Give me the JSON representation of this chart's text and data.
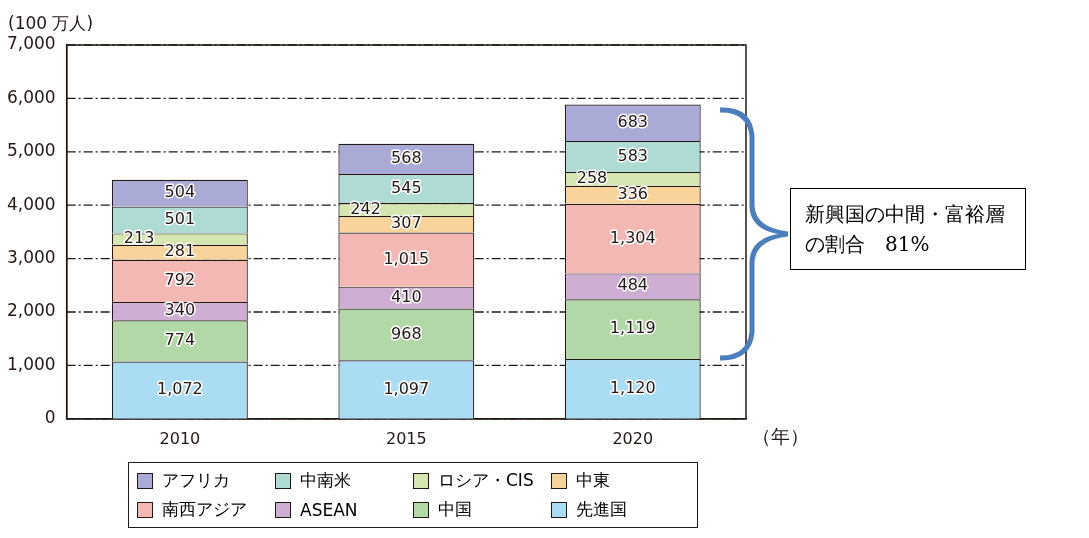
{
  "chart_data": {
    "type": "bar",
    "stacked": true,
    "ylabel": "(100 万人)",
    "xlabel": "（年）",
    "categories": [
      "2010",
      "2015",
      "2020"
    ],
    "series": [
      {
        "name": "先進国",
        "color": "#aadcf4",
        "values": [
          1072,
          1097,
          1120
        ],
        "value_labels": [
          "1,072",
          "1,097",
          "1,120"
        ]
      },
      {
        "name": "中国",
        "color": "#b2d8a8",
        "values": [
          774,
          968,
          1119
        ],
        "value_labels": [
          "774",
          "968",
          "1,119"
        ]
      },
      {
        "name": "ASEAN",
        "color": "#cfaed4",
        "values": [
          340,
          410,
          484
        ],
        "value_labels": [
          "340",
          "410",
          "484"
        ]
      },
      {
        "name": "南西アジア",
        "color": "#f4b8b4",
        "values": [
          792,
          1015,
          1304
        ],
        "value_labels": [
          "792",
          "1,015",
          "1,304"
        ]
      },
      {
        "name": "中東",
        "color": "#f8d49a",
        "values": [
          281,
          307,
          336
        ],
        "value_labels": [
          "281",
          "307",
          "336"
        ]
      },
      {
        "name": "ロシア・CIS",
        "color": "#d6e6b0",
        "values": [
          213,
          242,
          258
        ],
        "value_labels": [
          "213",
          "242",
          "258"
        ]
      },
      {
        "name": "中南米",
        "color": "#aedcd4",
        "values": [
          501,
          545,
          583
        ],
        "value_labels": [
          "501",
          "545",
          "583"
        ]
      },
      {
        "name": "アフリカ",
        "color": "#aaaad6",
        "values": [
          504,
          568,
          683
        ],
        "value_labels": [
          "504",
          "568",
          "683"
        ]
      }
    ],
    "ylim": [
      0,
      7000
    ],
    "yticks": [
      0,
      {
        "value": 1000,
        "label": "1,000"
      },
      {
        "value": 2000,
        "label": "2,000"
      },
      {
        "value": 3000,
        "label": "3,000"
      },
      {
        "value": 4000,
        "label": "4,000"
      },
      {
        "value": 5000,
        "label": "5,000"
      },
      {
        "value": 6000,
        "label": "6,000"
      },
      {
        "value": 7000,
        "label": "7,000"
      }
    ],
    "grid": "y",
    "legend": "bottom",
    "annotations": [
      "新興国の中間・富裕層の割合　81%"
    ]
  }
}
